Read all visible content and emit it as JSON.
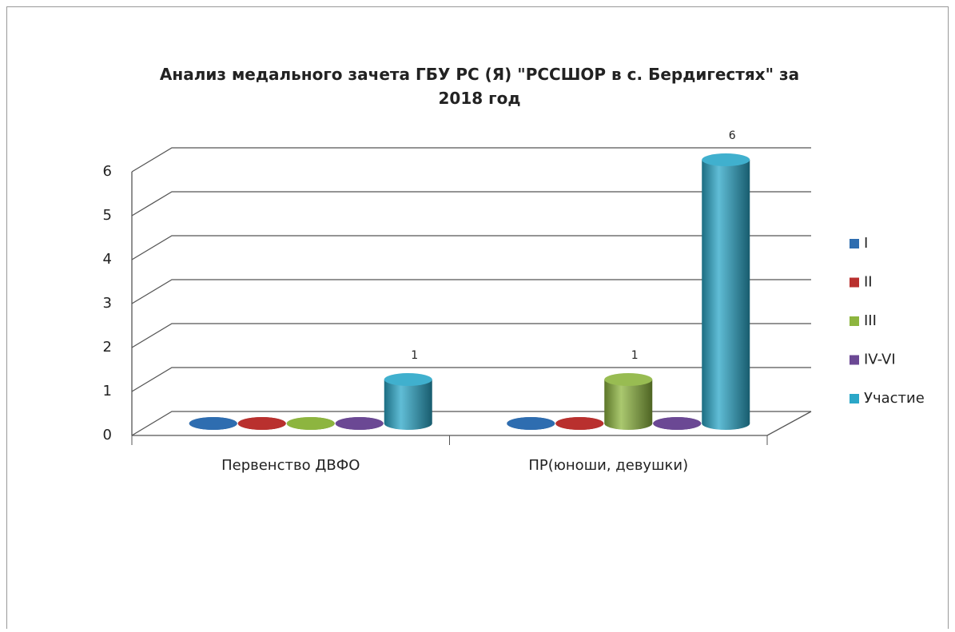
{
  "chart_data": {
    "type": "bar3d",
    "title": "Анализ медального зачета ГБУ РС (Я) \"РССШОР в с. Бердигестях\" за 2018 год",
    "categories": [
      "Первенство ДВФО",
      "ПР(юноши, девушки)"
    ],
    "series": [
      {
        "name": "I",
        "color": "#2e6db0",
        "values": [
          0,
          0
        ]
      },
      {
        "name": "II",
        "color": "#b9302e",
        "values": [
          0,
          0
        ]
      },
      {
        "name": "III",
        "color": "#8db53f",
        "values": [
          0,
          1
        ]
      },
      {
        "name": "IV-VI",
        "color": "#6b4894",
        "values": [
          0,
          0
        ]
      },
      {
        "name": "Участие",
        "color": "#2ba7c8",
        "values": [
          1,
          6
        ]
      }
    ],
    "ylim": [
      0,
      6
    ],
    "yticks": [
      0,
      1,
      2,
      3,
      4,
      5,
      6
    ],
    "grid": true,
    "legend": "right"
  }
}
